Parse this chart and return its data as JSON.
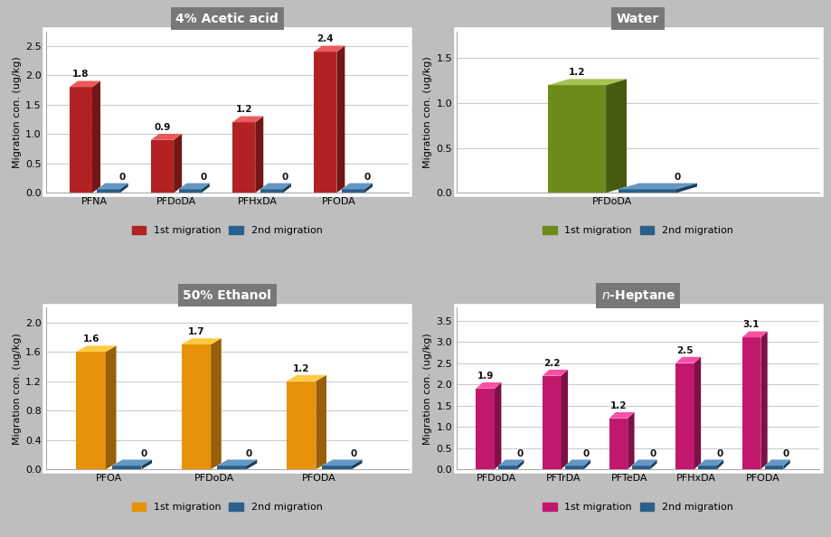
{
  "subplot1": {
    "title": "4% Acetic acid",
    "title_italic_n": false,
    "categories": [
      "PFNA",
      "PFDoDA",
      "PFHxDA",
      "PFODA"
    ],
    "migration1": [
      1.8,
      0.9,
      1.2,
      2.4
    ],
    "migration2": [
      0,
      0,
      0,
      0
    ],
    "color1": "#B22222",
    "color2": "#2C5F8A",
    "ylim": [
      0,
      2.75
    ],
    "yticks": [
      0.0,
      0.5,
      1.0,
      1.5,
      2.0,
      2.5
    ]
  },
  "subplot2": {
    "title": "Water",
    "title_italic_n": false,
    "categories": [
      "PFDoDA"
    ],
    "migration1": [
      1.2
    ],
    "migration2": [
      0
    ],
    "color1": "#6B8C1A",
    "color2": "#2C5F8A",
    "ylim": [
      0,
      1.8
    ],
    "yticks": [
      0.0,
      0.5,
      1.0,
      1.5
    ]
  },
  "subplot3": {
    "title": "50% Ethanol",
    "title_italic_n": false,
    "categories": [
      "PFOA",
      "PFDoDA",
      "PFODA"
    ],
    "migration1": [
      1.6,
      1.7,
      1.2
    ],
    "migration2": [
      0,
      0,
      0
    ],
    "color1": "#E8920A",
    "color2": "#2C5F8A",
    "ylim": [
      0,
      2.2
    ],
    "yticks": [
      0.0,
      0.4,
      0.8,
      1.2,
      1.6,
      2.0
    ]
  },
  "subplot4": {
    "title": "n-Heptane",
    "title_italic_n": true,
    "categories": [
      "PFDoDA",
      "PFTrDA",
      "PFTeDA",
      "PFHxDA",
      "PFODA"
    ],
    "migration1": [
      1.9,
      2.2,
      1.2,
      2.5,
      3.1
    ],
    "migration2": [
      0,
      0,
      0,
      0,
      0
    ],
    "color1": "#C0186C",
    "color2": "#2C5F8A",
    "ylim": [
      0,
      3.8
    ],
    "yticks": [
      0.0,
      0.5,
      1.0,
      1.5,
      2.0,
      2.5,
      3.0,
      3.5
    ]
  },
  "ylabel": "Migration con. (ug/kg)",
  "legend1": "1st migration",
  "legend2": "2nd migration",
  "title_bg": "#787878",
  "plot_bg": "#FFFFFF",
  "panel_bg": "#F2F2F2",
  "fig_bg": "#BEBEBE",
  "grid_color": "#CCCCCC"
}
